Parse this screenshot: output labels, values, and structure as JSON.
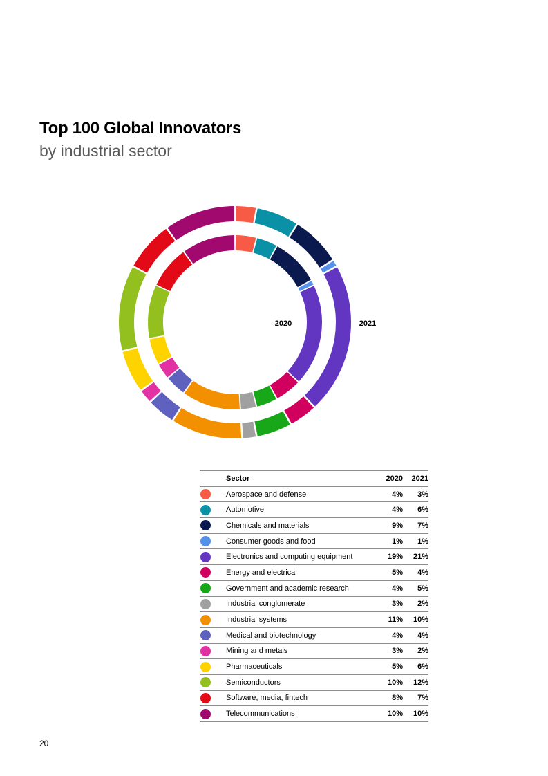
{
  "page": {
    "title": "Top 100 Global Innovators",
    "subtitle": "by industrial sector",
    "page_number": "20"
  },
  "chart_data": {
    "type": "donut",
    "rings": [
      "2020",
      "2021"
    ],
    "inner_ring_label": "2020",
    "outer_ring_label": "2021",
    "table_headers": {
      "sector": "Sector",
      "v2020": "2020",
      "v2021": "2021"
    },
    "unit": "%",
    "sectors": [
      {
        "name": "Aerospace and defense",
        "color": "#F75A45",
        "v2020": 4,
        "v2021": 3
      },
      {
        "name": "Automotive",
        "color": "#0A91A6",
        "v2020": 4,
        "v2021": 6
      },
      {
        "name": "Chemicals and materials",
        "color": "#0B1A4E",
        "v2020": 9,
        "v2021": 7
      },
      {
        "name": "Consumer goods and food",
        "color": "#5592EB",
        "v2020": 1,
        "v2021": 1
      },
      {
        "name": "Electronics and computing equipment",
        "color": "#6236C1",
        "v2020": 19,
        "v2021": 21
      },
      {
        "name": "Energy and electrical",
        "color": "#D1005E",
        "v2020": 5,
        "v2021": 4
      },
      {
        "name": "Government and academic research",
        "color": "#18A718",
        "v2020": 4,
        "v2021": 5
      },
      {
        "name": "Industrial conglomerate",
        "color": "#A0A0A0",
        "v2020": 3,
        "v2021": 2
      },
      {
        "name": "Industrial systems",
        "color": "#F29000",
        "v2020": 11,
        "v2021": 10
      },
      {
        "name": "Medical and biotechnology",
        "color": "#5E62BE",
        "v2020": 4,
        "v2021": 4
      },
      {
        "name": "Mining and metals",
        "color": "#E231A2",
        "v2020": 3,
        "v2021": 2
      },
      {
        "name": "Pharmaceuticals",
        "color": "#FFD300",
        "v2020": 5,
        "v2021": 6
      },
      {
        "name": "Semiconductors",
        "color": "#93C01F",
        "v2020": 10,
        "v2021": 12
      },
      {
        "name": "Software, media, fintech",
        "color": "#E20A17",
        "v2020": 8,
        "v2021": 7
      },
      {
        "name": "Telecommunications",
        "color": "#A1096E",
        "v2020": 10,
        "v2021": 10
      }
    ]
  }
}
